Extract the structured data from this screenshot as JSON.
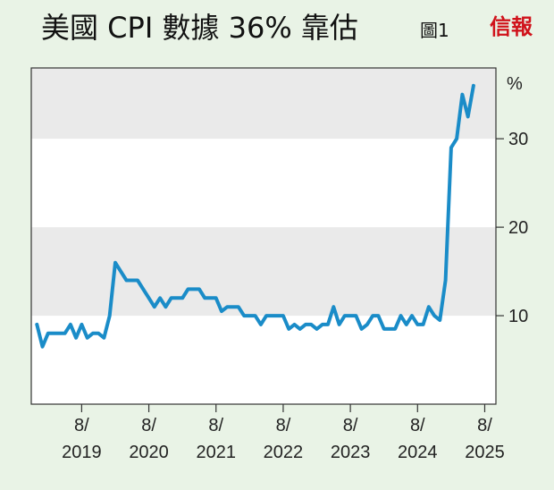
{
  "header": {
    "title": "美國 CPI 數據 36% 靠估",
    "figure_label": "圖1",
    "brand": "信報"
  },
  "chart_data": {
    "type": "line",
    "title": "美國 CPI 數據 36% 靠估",
    "ylabel": "%",
    "ylim": [
      0,
      38
    ],
    "yticks": [
      10,
      20,
      30
    ],
    "shaded_bands": [
      [
        10,
        20
      ],
      [
        30,
        38
      ]
    ],
    "band_color": "#eaeaea",
    "line_color": "#1a8cc8",
    "xlim": [
      "2018-11",
      "2025-10"
    ],
    "xticks": [
      {
        "x": "2019-08",
        "label": "8/\n2019",
        "top": "8/",
        "bottom": "2019"
      },
      {
        "x": "2020-08",
        "label": "8/\n2020",
        "top": "8/",
        "bottom": "2020"
      },
      {
        "x": "2021-08",
        "label": "8/\n2021",
        "top": "8/",
        "bottom": "2021"
      },
      {
        "x": "2022-08",
        "label": "8/\n2022",
        "top": "8/",
        "bottom": "2022"
      },
      {
        "x": "2023-08",
        "label": "8/\n2023",
        "top": "8/",
        "bottom": "2023"
      },
      {
        "x": "2024-08",
        "label": "8/\n2024",
        "top": "8/",
        "bottom": "2024"
      },
      {
        "x": "2025-08",
        "label": "8/\n2025",
        "top": "8/",
        "bottom": "2025"
      }
    ],
    "series": [
      {
        "values": [
          [
            "2018-12",
            9.0
          ],
          [
            "2019-01",
            6.5
          ],
          [
            "2019-02",
            8.0
          ],
          [
            "2019-03",
            8.0
          ],
          [
            "2019-04",
            8.0
          ],
          [
            "2019-05",
            8.0
          ],
          [
            "2019-06",
            9.0
          ],
          [
            "2019-07",
            7.5
          ],
          [
            "2019-08",
            9.0
          ],
          [
            "2019-09",
            7.5
          ],
          [
            "2019-10",
            8.0
          ],
          [
            "2019-11",
            8.0
          ],
          [
            "2019-12",
            7.5
          ],
          [
            "2020-01",
            10.0
          ],
          [
            "2020-02",
            16.0
          ],
          [
            "2020-03",
            15.0
          ],
          [
            "2020-04",
            14.0
          ],
          [
            "2020-05",
            14.0
          ],
          [
            "2020-06",
            14.0
          ],
          [
            "2020-07",
            13.0
          ],
          [
            "2020-08",
            12.0
          ],
          [
            "2020-09",
            11.0
          ],
          [
            "2020-10",
            12.0
          ],
          [
            "2020-11",
            11.0
          ],
          [
            "2020-12",
            12.0
          ],
          [
            "2021-01",
            12.0
          ],
          [
            "2021-02",
            12.0
          ],
          [
            "2021-03",
            13.0
          ],
          [
            "2021-04",
            13.0
          ],
          [
            "2021-05",
            13.0
          ],
          [
            "2021-06",
            12.0
          ],
          [
            "2021-07",
            12.0
          ],
          [
            "2021-08",
            12.0
          ],
          [
            "2021-09",
            10.5
          ],
          [
            "2021-10",
            11.0
          ],
          [
            "2021-11",
            11.0
          ],
          [
            "2021-12",
            11.0
          ],
          [
            "2022-01",
            10.0
          ],
          [
            "2022-02",
            10.0
          ],
          [
            "2022-03",
            10.0
          ],
          [
            "2022-04",
            9.0
          ],
          [
            "2022-05",
            10.0
          ],
          [
            "2022-06",
            10.0
          ],
          [
            "2022-07",
            10.0
          ],
          [
            "2022-08",
            10.0
          ],
          [
            "2022-09",
            8.5
          ],
          [
            "2022-10",
            9.0
          ],
          [
            "2022-11",
            8.5
          ],
          [
            "2022-12",
            9.0
          ],
          [
            "2023-01",
            9.0
          ],
          [
            "2023-02",
            8.5
          ],
          [
            "2023-03",
            9.0
          ],
          [
            "2023-04",
            9.0
          ],
          [
            "2023-05",
            11.0
          ],
          [
            "2023-06",
            9.0
          ],
          [
            "2023-07",
            10.0
          ],
          [
            "2023-08",
            10.0
          ],
          [
            "2023-09",
            10.0
          ],
          [
            "2023-10",
            8.5
          ],
          [
            "2023-11",
            9.0
          ],
          [
            "2023-12",
            10.0
          ],
          [
            "2024-01",
            10.0
          ],
          [
            "2024-02",
            8.5
          ],
          [
            "2024-03",
            8.5
          ],
          [
            "2024-04",
            8.5
          ],
          [
            "2024-05",
            10.0
          ],
          [
            "2024-06",
            9.0
          ],
          [
            "2024-07",
            10.0
          ],
          [
            "2024-08",
            9.0
          ],
          [
            "2024-09",
            9.0
          ],
          [
            "2024-10",
            11.0
          ],
          [
            "2024-11",
            10.0
          ],
          [
            "2024-12",
            9.5
          ],
          [
            "2025-01",
            14.0
          ],
          [
            "2025-02",
            29.0
          ],
          [
            "2025-03",
            30.0
          ],
          [
            "2025-04",
            35.0
          ],
          [
            "2025-05",
            32.5
          ],
          [
            "2025-06",
            36.0
          ]
        ]
      }
    ]
  }
}
